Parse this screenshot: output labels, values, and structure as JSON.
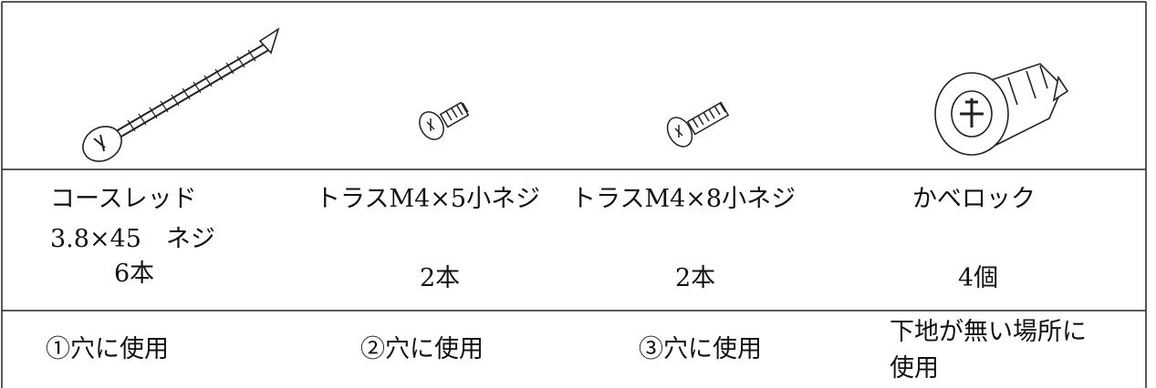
{
  "table": {
    "items": [
      {
        "name": [
          "コースレッド",
          "3.8×45　ネジ"
        ],
        "quantity": "6本",
        "use": [
          "①穴に使用"
        ]
      },
      {
        "name": [
          "トラスM4×5小ネジ"
        ],
        "quantity": "2本",
        "use": [
          "②穴に使用"
        ]
      },
      {
        "name": [
          "トラスM4×8小ネジ"
        ],
        "quantity": "2本",
        "use": [
          "③穴に使用"
        ]
      },
      {
        "name": [
          "かべロック"
        ],
        "quantity": "4個",
        "use": [
          "下地が無い場所に",
          "使用"
        ]
      }
    ]
  }
}
